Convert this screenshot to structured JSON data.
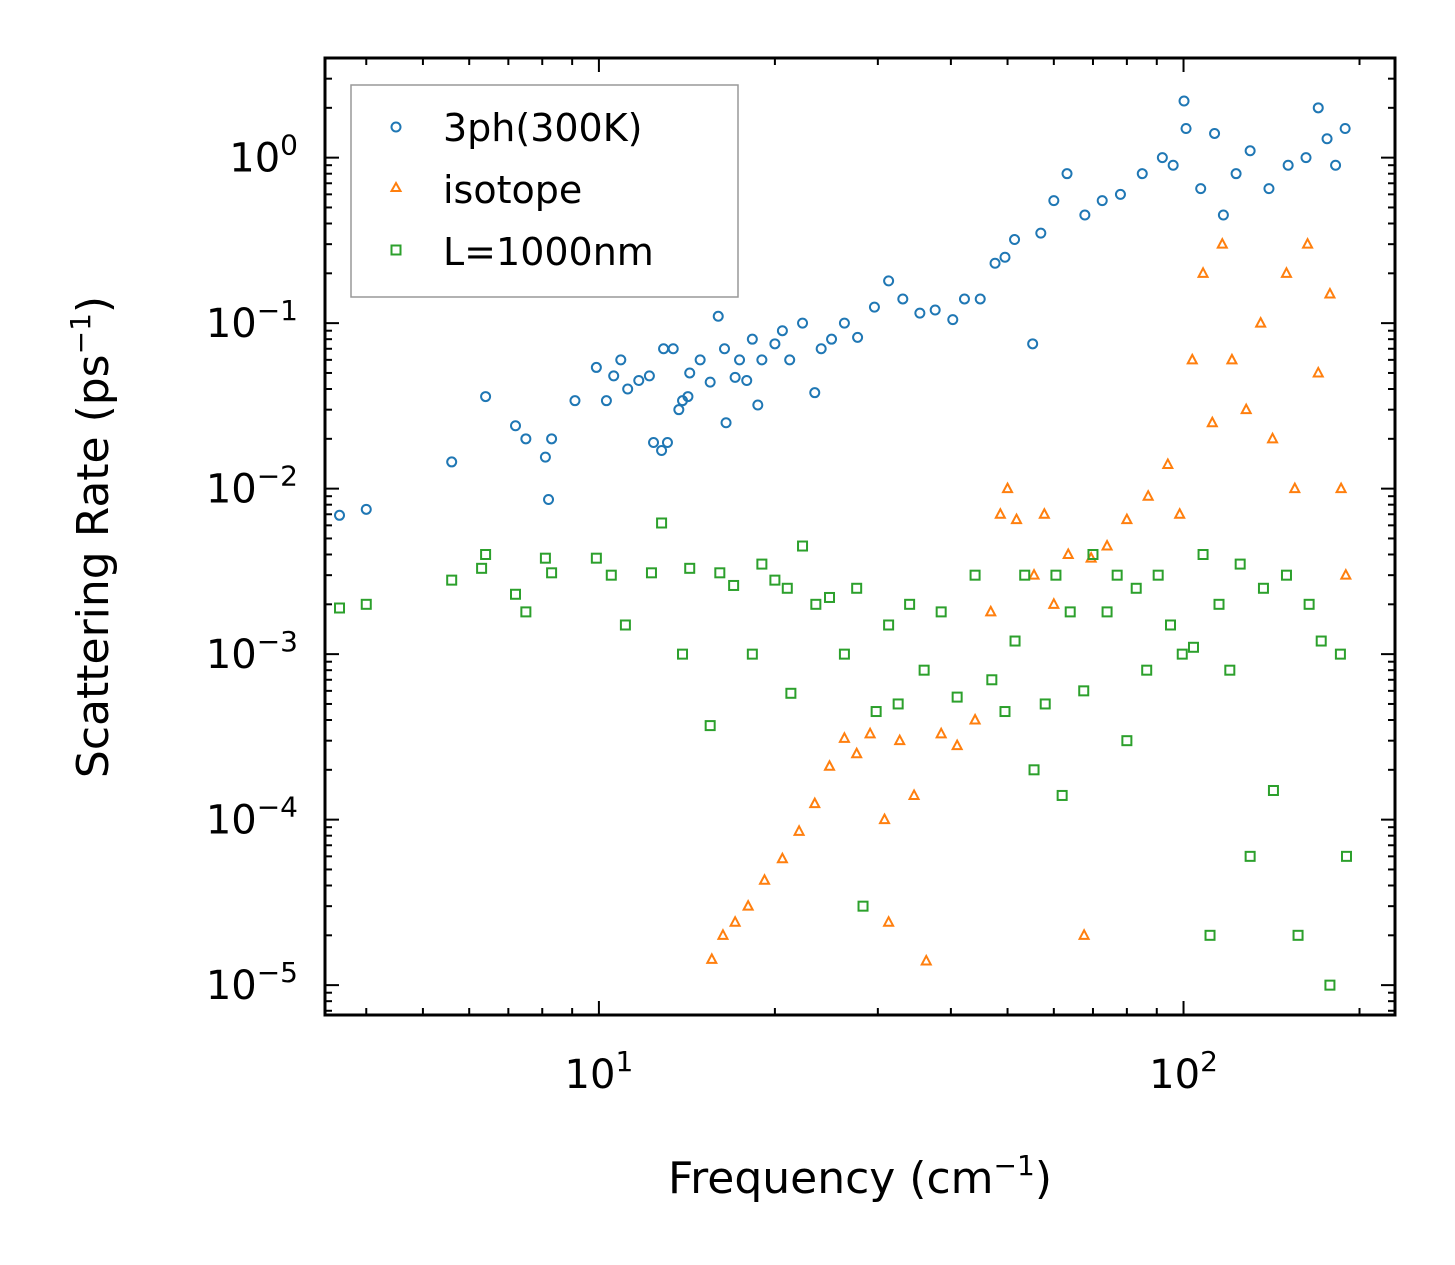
{
  "chart_data": {
    "type": "scatter",
    "x_scale": "log",
    "y_scale": "log",
    "xlim": [
      3.4,
      230
    ],
    "ylim": [
      6.6e-06,
      4.0
    ],
    "xlabel": {
      "base": "Frequency (cm",
      "sup": "−1",
      "tail": ")"
    },
    "ylabel": {
      "base": "Scattering Rate (ps",
      "sup": "−1",
      "tail": ")"
    },
    "x_ticks": [
      {
        "value": 10,
        "base": "10",
        "exp": "1"
      },
      {
        "value": 100,
        "base": "10",
        "exp": "2"
      }
    ],
    "y_ticks": [
      {
        "value": 1,
        "base": "10",
        "exp": "0"
      },
      {
        "value": 0.1,
        "base": "10",
        "exp": "−1"
      },
      {
        "value": 0.01,
        "base": "10",
        "exp": "−2"
      },
      {
        "value": 0.001,
        "base": "10",
        "exp": "−3"
      },
      {
        "value": 0.0001,
        "base": "10",
        "exp": "−4"
      },
      {
        "value": 1e-05,
        "base": "10",
        "exp": "−5"
      }
    ],
    "legend_position": "top-left",
    "series": [
      {
        "name": "3ph(300K)",
        "marker": "circle",
        "color": "#1f77b4",
        "points": [
          [
            3.6,
            0.0069
          ],
          [
            4.0,
            0.0075
          ],
          [
            5.6,
            0.0145
          ],
          [
            6.4,
            0.036
          ],
          [
            7.2,
            0.024
          ],
          [
            7.5,
            0.02
          ],
          [
            8.1,
            0.0155
          ],
          [
            8.3,
            0.02
          ],
          [
            8.2,
            0.0086
          ],
          [
            9.1,
            0.034
          ],
          [
            9.9,
            0.054
          ],
          [
            10.3,
            0.034
          ],
          [
            10.6,
            0.048
          ],
          [
            10.9,
            0.06
          ],
          [
            11.2,
            0.04
          ],
          [
            11.7,
            0.045
          ],
          [
            12.2,
            0.048
          ],
          [
            12.4,
            0.019
          ],
          [
            12.8,
            0.017
          ],
          [
            12.9,
            0.07
          ],
          [
            13.1,
            0.019
          ],
          [
            13.4,
            0.07
          ],
          [
            13.7,
            0.03
          ],
          [
            13.9,
            0.034
          ],
          [
            14.2,
            0.036
          ],
          [
            14.3,
            0.05
          ],
          [
            14.9,
            0.06
          ],
          [
            15.5,
            0.044
          ],
          [
            16.0,
            0.11
          ],
          [
            16.4,
            0.07
          ],
          [
            16.5,
            0.025
          ],
          [
            17.1,
            0.047
          ],
          [
            17.4,
            0.06
          ],
          [
            17.9,
            0.045
          ],
          [
            18.3,
            0.08
          ],
          [
            18.7,
            0.032
          ],
          [
            19.0,
            0.06
          ],
          [
            20.0,
            0.075
          ],
          [
            20.6,
            0.09
          ],
          [
            21.2,
            0.06
          ],
          [
            22.3,
            0.1
          ],
          [
            23.4,
            0.038
          ],
          [
            24.0,
            0.07
          ],
          [
            25.0,
            0.08
          ],
          [
            26.3,
            0.1
          ],
          [
            27.7,
            0.082
          ],
          [
            29.6,
            0.125
          ],
          [
            31.3,
            0.18
          ],
          [
            33.1,
            0.14
          ],
          [
            35.4,
            0.115
          ],
          [
            37.6,
            0.12
          ],
          [
            40.3,
            0.105
          ],
          [
            42.2,
            0.14
          ],
          [
            44.9,
            0.14
          ],
          [
            47.6,
            0.23
          ],
          [
            49.5,
            0.25
          ],
          [
            51.4,
            0.32
          ],
          [
            55.2,
            0.075
          ],
          [
            57.0,
            0.35
          ],
          [
            60.0,
            0.55
          ],
          [
            63.2,
            0.8
          ],
          [
            67.8,
            0.45
          ],
          [
            72.6,
            0.55
          ],
          [
            78.0,
            0.6
          ],
          [
            85.0,
            0.8
          ],
          [
            92.0,
            1.0
          ],
          [
            100.2,
            2.2
          ],
          [
            96.0,
            0.9
          ],
          [
            101.0,
            1.5
          ],
          [
            107.0,
            0.65
          ],
          [
            113.0,
            1.4
          ],
          [
            117.0,
            0.45
          ],
          [
            123.0,
            0.8
          ],
          [
            130.0,
            1.1
          ],
          [
            140.0,
            0.65
          ],
          [
            151.0,
            0.9
          ],
          [
            162.0,
            1.0
          ],
          [
            170.0,
            2.0
          ],
          [
            176.0,
            1.3
          ],
          [
            182.0,
            0.9
          ],
          [
            189.0,
            1.5
          ]
        ]
      },
      {
        "name": "isotope",
        "marker": "triangle",
        "color": "#ff7f0e",
        "points": [
          [
            15.6,
            1.43e-05
          ],
          [
            16.3,
            2e-05
          ],
          [
            17.1,
            2.4e-05
          ],
          [
            18.0,
            3e-05
          ],
          [
            19.2,
            4.3e-05
          ],
          [
            20.6,
            5.8e-05
          ],
          [
            22.0,
            8.5e-05
          ],
          [
            23.4,
            0.000125
          ],
          [
            24.8,
            0.00021
          ],
          [
            26.3,
            0.00031
          ],
          [
            27.6,
            0.00025
          ],
          [
            29.1,
            0.00033
          ],
          [
            30.8,
            0.0001
          ],
          [
            31.3,
            2.4e-05
          ],
          [
            32.7,
            0.0003
          ],
          [
            34.6,
            0.00014
          ],
          [
            36.3,
            1.4e-05
          ],
          [
            38.5,
            0.00033
          ],
          [
            41.0,
            0.00028
          ],
          [
            44.0,
            0.0004
          ],
          [
            46.8,
            0.0018
          ],
          [
            48.6,
            0.007
          ],
          [
            50.0,
            0.01
          ],
          [
            51.8,
            0.0065
          ],
          [
            55.5,
            0.003
          ],
          [
            57.8,
            0.007
          ],
          [
            60.0,
            0.002
          ],
          [
            63.5,
            0.004
          ],
          [
            67.6,
            2e-05
          ],
          [
            69.5,
            0.0038
          ],
          [
            74.0,
            0.0045
          ],
          [
            80.0,
            0.0065
          ],
          [
            87.0,
            0.009
          ],
          [
            94.0,
            0.014
          ],
          [
            98.5,
            0.007
          ],
          [
            103.5,
            0.06
          ],
          [
            108.0,
            0.2
          ],
          [
            112.0,
            0.025
          ],
          [
            116.5,
            0.3
          ],
          [
            121.0,
            0.06
          ],
          [
            128.0,
            0.03
          ],
          [
            135.5,
            0.1
          ],
          [
            142.0,
            0.02
          ],
          [
            150.0,
            0.2
          ],
          [
            155.0,
            0.01
          ],
          [
            163.0,
            0.3
          ],
          [
            170.0,
            0.05
          ],
          [
            178.0,
            0.15
          ],
          [
            186.0,
            0.01
          ],
          [
            189.5,
            0.003
          ]
        ]
      },
      {
        "name": "L=1000nm",
        "marker": "square",
        "color": "#2ca02c",
        "points": [
          [
            3.6,
            0.0019
          ],
          [
            4.0,
            0.002
          ],
          [
            5.6,
            0.0028
          ],
          [
            6.4,
            0.004
          ],
          [
            6.3,
            0.0033
          ],
          [
            7.2,
            0.0023
          ],
          [
            7.5,
            0.0018
          ],
          [
            8.1,
            0.0038
          ],
          [
            8.3,
            0.0031
          ],
          [
            9.9,
            0.0038
          ],
          [
            10.5,
            0.003
          ],
          [
            11.1,
            0.0015
          ],
          [
            12.3,
            0.0031
          ],
          [
            12.8,
            0.0062
          ],
          [
            13.9,
            0.001
          ],
          [
            14.3,
            0.0033
          ],
          [
            15.5,
            0.00037
          ],
          [
            16.1,
            0.0031
          ],
          [
            17.0,
            0.0026
          ],
          [
            18.3,
            0.001
          ],
          [
            19.0,
            0.0035
          ],
          [
            20.0,
            0.0028
          ],
          [
            21.0,
            0.0025
          ],
          [
            21.3,
            0.00058
          ],
          [
            22.3,
            0.0045
          ],
          [
            23.5,
            0.002
          ],
          [
            24.8,
            0.0022
          ],
          [
            26.3,
            0.001
          ],
          [
            27.6,
            0.0025
          ],
          [
            28.3,
            3e-05
          ],
          [
            29.8,
            0.00045
          ],
          [
            31.3,
            0.0015
          ],
          [
            32.5,
            0.0005
          ],
          [
            34.0,
            0.002
          ],
          [
            36.0,
            0.0008
          ],
          [
            38.5,
            0.0018
          ],
          [
            41.0,
            0.00055
          ],
          [
            44.0,
            0.003
          ],
          [
            47.0,
            0.0007
          ],
          [
            49.5,
            0.00045
          ],
          [
            51.5,
            0.0012
          ],
          [
            53.5,
            0.003
          ],
          [
            55.5,
            0.0002
          ],
          [
            58.0,
            0.0005
          ],
          [
            60.5,
            0.003
          ],
          [
            62.0,
            0.00014
          ],
          [
            64.0,
            0.0018
          ],
          [
            67.5,
            0.0006
          ],
          [
            70.0,
            0.004
          ],
          [
            74.0,
            0.0018
          ],
          [
            77.0,
            0.003
          ],
          [
            80.0,
            0.0003
          ],
          [
            83.0,
            0.0025
          ],
          [
            86.5,
            0.0008
          ],
          [
            90.5,
            0.003
          ],
          [
            95.0,
            0.0015
          ],
          [
            99.5,
            0.001
          ],
          [
            104.0,
            0.0011
          ],
          [
            108.0,
            0.004
          ],
          [
            111.0,
            2e-05
          ],
          [
            115.0,
            0.002
          ],
          [
            120.0,
            0.0008
          ],
          [
            125.0,
            0.0035
          ],
          [
            130.0,
            6e-05
          ],
          [
            137.0,
            0.0025
          ],
          [
            142.5,
            0.00015
          ],
          [
            150.0,
            0.003
          ],
          [
            157.0,
            2e-05
          ],
          [
            164.0,
            0.002
          ],
          [
            172.0,
            0.0012
          ],
          [
            178.0,
            1e-05
          ],
          [
            185.5,
            0.001
          ],
          [
            190.0,
            6e-05
          ]
        ]
      }
    ]
  }
}
